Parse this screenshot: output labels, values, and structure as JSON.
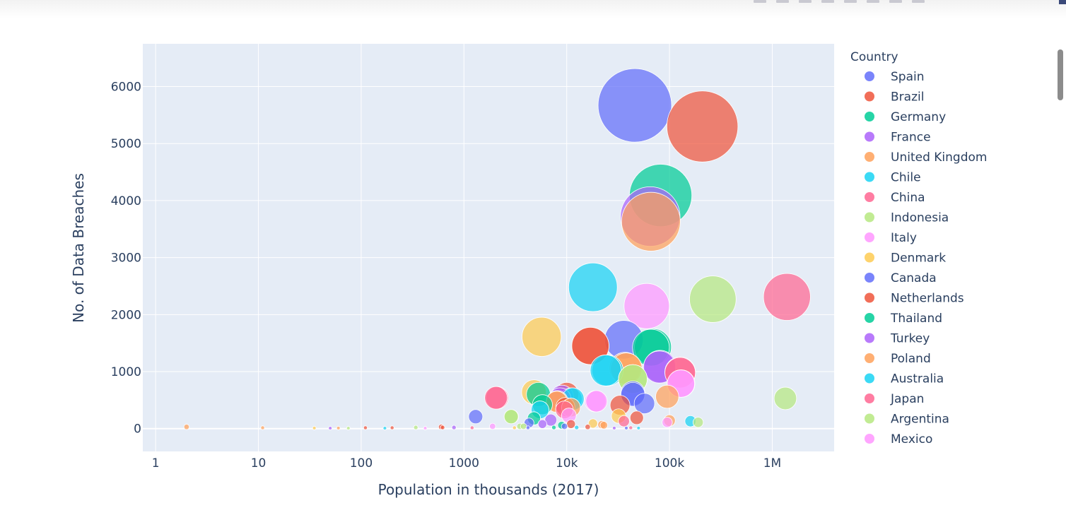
{
  "toolbar": {
    "icons": [
      "camera-icon",
      "zoom-icon",
      "pan-icon",
      "select-icon",
      "zoom-in-icon",
      "zoom-out-icon",
      "autoscale-icon",
      "reset-icon"
    ]
  },
  "chart_data": {
    "type": "scatter",
    "mode": "bubble",
    "xlabel": "Population in thousands (2017)",
    "ylabel": "No. of Data Breaches",
    "xscale": "log",
    "xlim": [
      0.75,
      4000000
    ],
    "ylim": [
      -400,
      6750
    ],
    "xticks": [
      {
        "value": 1,
        "label": "1"
      },
      {
        "value": 10,
        "label": "10"
      },
      {
        "value": 100,
        "label": "100"
      },
      {
        "value": 1000,
        "label": "1000"
      },
      {
        "value": 10000,
        "label": "10k"
      },
      {
        "value": 100000,
        "label": "100k"
      },
      {
        "value": 1000000,
        "label": "1M"
      }
    ],
    "yticks": [
      {
        "value": 0,
        "label": "0"
      },
      {
        "value": 1000,
        "label": "1000"
      },
      {
        "value": 2000,
        "label": "2000"
      },
      {
        "value": 3000,
        "label": "3000"
      },
      {
        "value": 4000,
        "label": "4000"
      },
      {
        "value": 5000,
        "label": "5000"
      },
      {
        "value": 6000,
        "label": "6000"
      }
    ],
    "grid": true,
    "legend_title": "Country",
    "legend_position": "right",
    "size_max_value": 5670,
    "series": [
      {
        "name": "Spain",
        "color": "#636efa",
        "points": [
          {
            "x": 46000,
            "y": 5670
          },
          {
            "x": 36000,
            "y": 1560
          },
          {
            "x": 44000,
            "y": 620
          },
          {
            "x": 4300,
            "y": 100
          },
          {
            "x": 9500,
            "y": 40
          },
          {
            "x": 38000,
            "y": 10
          }
        ]
      },
      {
        "name": "Brazil",
        "color": "#EF553B",
        "points": [
          {
            "x": 209000,
            "y": 5300
          },
          {
            "x": 17000,
            "y": 1450
          },
          {
            "x": 10000,
            "y": 600
          },
          {
            "x": 33000,
            "y": 410
          },
          {
            "x": 48000,
            "y": 190
          },
          {
            "x": 11000,
            "y": 80
          },
          {
            "x": 600,
            "y": 30
          },
          {
            "x": 110,
            "y": 15
          }
        ]
      },
      {
        "name": "Germany",
        "color": "#00cc96",
        "points": [
          {
            "x": 82000,
            "y": 4090
          },
          {
            "x": 66000,
            "y": 1420
          },
          {
            "x": 5300,
            "y": 600
          },
          {
            "x": 5800,
            "y": 420
          },
          {
            "x": 8900,
            "y": 60
          }
        ]
      },
      {
        "name": "France",
        "color": "#ab63fa",
        "points": [
          {
            "x": 65000,
            "y": 3720
          },
          {
            "x": 81000,
            "y": 1090
          },
          {
            "x": 9000,
            "y": 560
          },
          {
            "x": 7000,
            "y": 150
          },
          {
            "x": 5800,
            "y": 80
          },
          {
            "x": 800,
            "y": 20
          }
        ]
      },
      {
        "name": "United Kingdom",
        "color": "#FFA15A",
        "points": [
          {
            "x": 66000,
            "y": 3630
          },
          {
            "x": 37000,
            "y": 1060
          },
          {
            "x": 95000,
            "y": 560
          },
          {
            "x": 11000,
            "y": 370
          },
          {
            "x": 8000,
            "y": 470
          },
          {
            "x": 22000,
            "y": 70
          },
          {
            "x": 100000,
            "y": 140
          },
          {
            "x": 2,
            "y": 30
          }
        ]
      },
      {
        "name": "Chile",
        "color": "#19d3f3",
        "points": [
          {
            "x": 18000,
            "y": 2480
          },
          {
            "x": 25000,
            "y": 1020
          },
          {
            "x": 11000,
            "y": 520
          },
          {
            "x": 5500,
            "y": 330
          },
          {
            "x": 160000,
            "y": 130
          }
        ]
      },
      {
        "name": "China",
        "color": "#FF6692",
        "points": [
          {
            "x": 1390000,
            "y": 2310
          },
          {
            "x": 127000,
            "y": 980
          },
          {
            "x": 2100,
            "y": 540
          },
          {
            "x": 9500,
            "y": 330
          },
          {
            "x": 36000,
            "y": 130
          }
        ]
      },
      {
        "name": "Indonesia",
        "color": "#B6E880",
        "points": [
          {
            "x": 264000,
            "y": 2270
          },
          {
            "x": 44000,
            "y": 870
          },
          {
            "x": 1340000,
            "y": 530
          },
          {
            "x": 2900,
            "y": 210
          },
          {
            "x": 190000,
            "y": 110
          }
        ]
      },
      {
        "name": "Italy",
        "color": "#FF97FF",
        "points": [
          {
            "x": 60000,
            "y": 2150
          },
          {
            "x": 130000,
            "y": 790
          },
          {
            "x": 19000,
            "y": 480
          },
          {
            "x": 10500,
            "y": 230
          },
          {
            "x": 95000,
            "y": 110
          }
        ]
      },
      {
        "name": "Denmark",
        "color": "#FECB52",
        "points": [
          {
            "x": 5700,
            "y": 1610
          },
          {
            "x": 4800,
            "y": 640
          },
          {
            "x": 32000,
            "y": 220
          },
          {
            "x": 18000,
            "y": 90
          }
        ]
      },
      {
        "name": "Canada",
        "color": "#636efa",
        "points": [
          {
            "x": 44000,
            "y": 600
          },
          {
            "x": 57000,
            "y": 440
          },
          {
            "x": 1300,
            "y": 210
          }
        ]
      },
      {
        "name": "Netherlands",
        "color": "#EF553B",
        "points": [
          {
            "x": 17000,
            "y": 1450
          },
          {
            "x": 9700,
            "y": 380
          },
          {
            "x": 200,
            "y": 15
          }
        ]
      },
      {
        "name": "Thailand",
        "color": "#00cc96",
        "points": [
          {
            "x": 69000,
            "y": 1430
          },
          {
            "x": 4800,
            "y": 180
          }
        ]
      },
      {
        "name": "Turkey",
        "color": "#ab63fa",
        "points": [
          {
            "x": 80000,
            "y": 1080
          },
          {
            "x": 8600,
            "y": 520
          }
        ]
      },
      {
        "name": "Poland",
        "color": "#FFA15A",
        "points": [
          {
            "x": 38000,
            "y": 1050
          },
          {
            "x": 8100,
            "y": 480
          },
          {
            "x": 23000,
            "y": 60
          }
        ]
      },
      {
        "name": "Australia",
        "color": "#19d3f3",
        "points": [
          {
            "x": 24000,
            "y": 1020
          },
          {
            "x": 11500,
            "y": 520
          },
          {
            "x": 50000,
            "y": 10
          }
        ]
      },
      {
        "name": "Japan",
        "color": "#FF6692",
        "points": [
          {
            "x": 127000,
            "y": 990
          },
          {
            "x": 2050,
            "y": 540
          },
          {
            "x": 1200,
            "y": 15
          }
        ]
      },
      {
        "name": "Argentina",
        "color": "#B6E880",
        "points": [
          {
            "x": 44000,
            "y": 870
          },
          {
            "x": 2880,
            "y": 210
          },
          {
            "x": 3500,
            "y": 40
          },
          {
            "x": 340,
            "y": 20
          }
        ]
      },
      {
        "name": "Mexico",
        "color": "#FF97FF",
        "points": [
          {
            "x": 129000,
            "y": 790
          },
          {
            "x": 19500,
            "y": 480
          },
          {
            "x": 1900,
            "y": 40
          }
        ]
      }
    ],
    "extra_points": [
      {
        "x": 11,
        "y": 15,
        "color": "#FFA15A"
      },
      {
        "x": 35,
        "y": 10,
        "color": "#FECB52"
      },
      {
        "x": 50,
        "y": 8,
        "color": "#ab63fa"
      },
      {
        "x": 60,
        "y": 10,
        "color": "#FFA15A"
      },
      {
        "x": 75,
        "y": 8,
        "color": "#B6E880"
      },
      {
        "x": 170,
        "y": 8,
        "color": "#19d3f3"
      },
      {
        "x": 420,
        "y": 8,
        "color": "#FF97FF"
      },
      {
        "x": 620,
        "y": 20,
        "color": "#EF553B"
      },
      {
        "x": 3100,
        "y": 15,
        "color": "#FECB52"
      },
      {
        "x": 3800,
        "y": 40,
        "color": "#B6E880"
      },
      {
        "x": 4200,
        "y": 15,
        "color": "#636efa"
      },
      {
        "x": 7500,
        "y": 20,
        "color": "#00cc96"
      },
      {
        "x": 12500,
        "y": 20,
        "color": "#19d3f3"
      },
      {
        "x": 16000,
        "y": 30,
        "color": "#EF553B"
      },
      {
        "x": 29000,
        "y": 10,
        "color": "#ab63fa"
      },
      {
        "x": 42000,
        "y": 15,
        "color": "#FF6692"
      }
    ]
  }
}
